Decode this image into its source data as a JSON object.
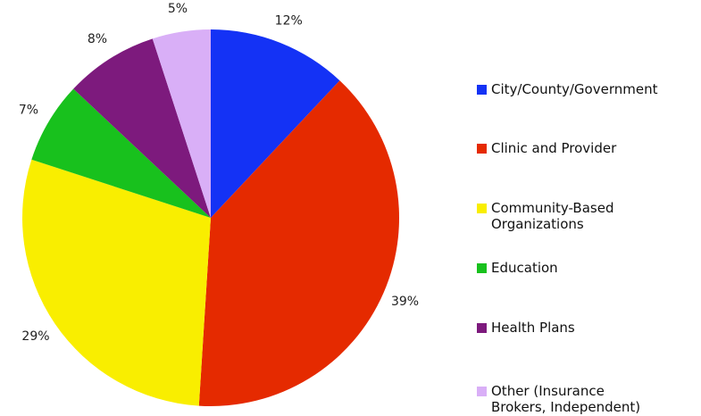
{
  "chart_data": {
    "type": "pie",
    "categories": [
      "City/County/Government",
      "Clinic and Provider",
      "Community-Based Organizations",
      "Education",
      "Health Plans",
      "Other (Insurance Brokers, Independent)"
    ],
    "values": [
      12,
      39,
      29,
      7,
      8,
      5
    ],
    "value_labels": [
      "12%",
      "39%",
      "29%",
      "7%",
      "8%",
      "5%"
    ],
    "colors": [
      "#1432f5",
      "#e52a00",
      "#f9ee00",
      "#18c11d",
      "#7d1a7d",
      "#d9aff7"
    ],
    "legend": "right"
  }
}
